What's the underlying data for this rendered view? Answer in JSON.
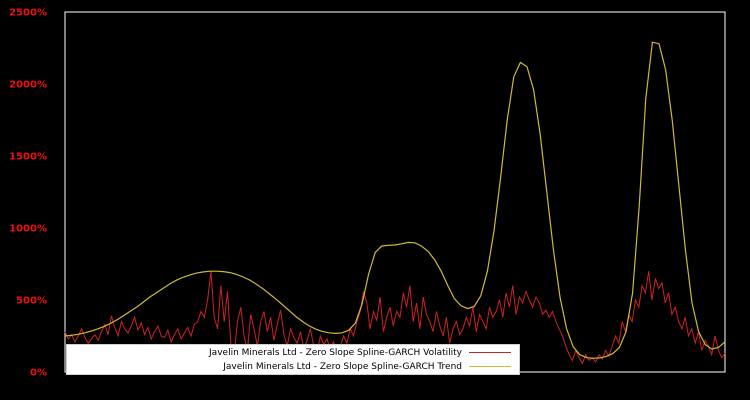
{
  "colors": {
    "background": "#000000",
    "frame": "#ffffff",
    "tick_label": "#ee1111",
    "volatility_line": "#cc2222",
    "trend_line": "#cdbb3a",
    "legend_background": "#ffffff",
    "legend_text": "#000000"
  },
  "chart_data": {
    "type": "line",
    "title": "",
    "xlabel": "",
    "ylabel": "",
    "ylim": [
      0,
      2500
    ],
    "yticks": [
      0,
      500,
      1000,
      1500,
      2000,
      2500
    ],
    "ytick_labels": [
      "0%",
      "500%",
      "1000%",
      "1500%",
      "2000%",
      "2500%"
    ],
    "grid": false,
    "legend_position": "bottom-left-inside",
    "series": [
      {
        "name": "Javelin Minerals Ltd - Zero Slope Spline-GARCH Volatility",
        "color": "#cc2222",
        "unit": "%",
        "values": [
          280,
          230,
          260,
          210,
          250,
          300,
          240,
          200,
          230,
          260,
          220,
          280,
          330,
          260,
          390,
          310,
          250,
          350,
          300,
          270,
          320,
          380,
          290,
          340,
          260,
          310,
          230,
          280,
          320,
          250,
          240,
          290,
          210,
          260,
          300,
          230,
          270,
          310,
          250,
          330,
          350,
          420,
          380,
          500,
          700,
          380,
          300,
          600,
          350,
          560,
          200,
          120,
          350,
          450,
          250,
          150,
          400,
          300,
          180,
          350,
          420,
          280,
          380,
          220,
          330,
          430,
          260,
          180,
          300,
          240,
          200,
          280,
          160,
          220,
          300,
          180,
          140,
          250,
          190,
          230,
          160,
          210,
          140,
          180,
          250,
          200,
          300,
          250,
          350,
          420,
          560,
          480,
          300,
          420,
          360,
          520,
          280,
          380,
          450,
          320,
          420,
          380,
          550,
          450,
          600,
          350,
          480,
          300,
          520,
          400,
          350,
          280,
          420,
          320,
          250,
          380,
          200,
          300,
          350,
          260,
          300,
          380,
          320,
          450,
          280,
          400,
          350,
          300,
          450,
          380,
          420,
          500,
          380,
          550,
          450,
          600,
          400,
          520,
          480,
          560,
          500,
          450,
          520,
          480,
          400,
          430,
          380,
          420,
          350,
          300,
          250,
          180,
          120,
          80,
          150,
          100,
          60,
          120,
          80,
          100,
          70,
          120,
          90,
          150,
          110,
          180,
          250,
          200,
          350,
          280,
          400,
          350,
          500,
          450,
          600,
          550,
          700,
          500,
          650,
          580,
          620,
          480,
          550,
          400,
          450,
          350,
          300,
          380,
          250,
          300,
          200,
          280,
          150,
          220,
          180,
          120,
          250,
          150,
          100,
          130
        ]
      },
      {
        "name": "Javelin Minerals Ltd - Zero Slope Spline-GARCH Trend",
        "color": "#cdbb3a",
        "unit": "%",
        "values": [
          250,
          255,
          262,
          272,
          285,
          300,
          318,
          340,
          365,
          395,
          425,
          455,
          490,
          525,
          555,
          585,
          615,
          640,
          660,
          675,
          688,
          695,
          700,
          700,
          697,
          690,
          678,
          660,
          638,
          610,
          578,
          542,
          505,
          465,
          425,
          385,
          350,
          320,
          297,
          282,
          272,
          268,
          272,
          290,
          340,
          470,
          680,
          830,
          875,
          880,
          882,
          890,
          900,
          897,
          875,
          838,
          780,
          700,
          600,
          510,
          460,
          440,
          455,
          530,
          700,
          980,
          1350,
          1750,
          2050,
          2150,
          2120,
          1960,
          1650,
          1250,
          850,
          520,
          300,
          175,
          120,
          100,
          95,
          98,
          108,
          128,
          170,
          280,
          550,
          1150,
          1900,
          2290,
          2280,
          2100,
          1750,
          1300,
          850,
          480,
          280,
          190,
          160,
          170,
          210
        ]
      }
    ]
  },
  "legend": {
    "items": [
      {
        "label": "Javelin Minerals Ltd - Zero Slope Spline-GARCH Volatility",
        "color": "#cc2222"
      },
      {
        "label": "Javelin Minerals Ltd - Zero Slope Spline-GARCH Trend",
        "color": "#cdbb3a"
      }
    ]
  }
}
